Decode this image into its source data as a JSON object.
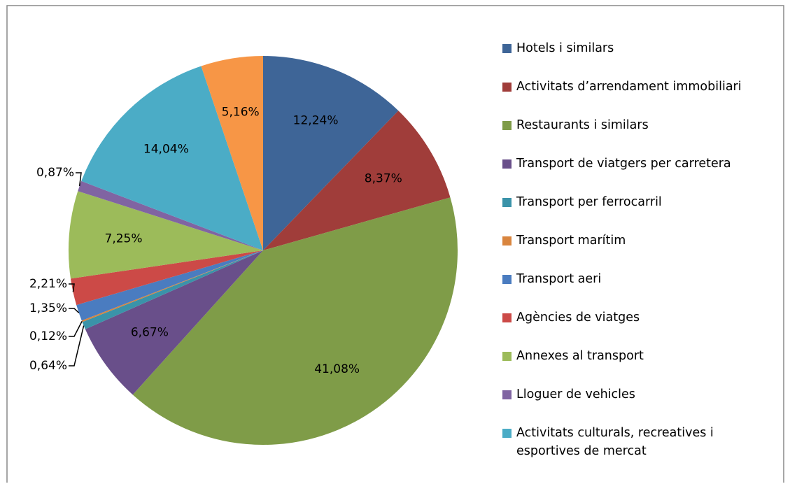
{
  "chart_data": {
    "type": "pie",
    "categories": [
      "Hotels i similars",
      "Activitats d’arrendament immobiliari",
      "Restaurants i similars",
      "Transport de viatgers per carretera",
      "Transport per ferrocarril",
      "Transport marítim",
      "Transport aeri",
      "Agències de viatges",
      "Annexes al transport",
      "Lloguer de vehicles",
      "Activitats culturals, recreatives i esportives de mercat",
      null
    ],
    "values": [
      12.24,
      8.37,
      41.08,
      6.67,
      0.64,
      0.12,
      1.35,
      2.21,
      7.25,
      0.87,
      14.04,
      5.16
    ],
    "value_labels": [
      "12,24%",
      "8,37%",
      "41,08%",
      "6,67%",
      "0,64%",
      "0,12%",
      "1,35%",
      "2,21%",
      "7,25%",
      "0,87%",
      "14,04%",
      "5,16%"
    ],
    "colors": [
      "#3e6597",
      "#a03d3a",
      "#7f9c48",
      "#694f8a",
      "#3a93a9",
      "#d9853e",
      "#4a7cc0",
      "#cc4a47",
      "#9cbb5a",
      "#8064a2",
      "#4bacc6",
      "#f79646"
    ],
    "legend": "right"
  }
}
